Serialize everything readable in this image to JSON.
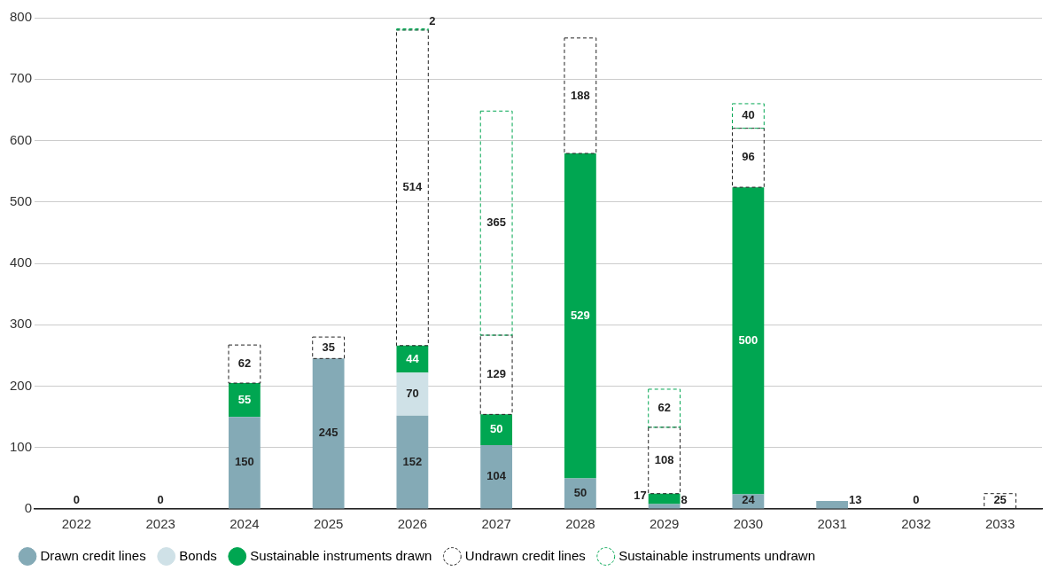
{
  "chart_data": {
    "type": "bar",
    "stacked": true,
    "categories": [
      "2022",
      "2023",
      "2024",
      "2025",
      "2026",
      "2027",
      "2028",
      "2029",
      "2030",
      "2031",
      "2032",
      "2033"
    ],
    "series": [
      {
        "name": "Drawn credit lines",
        "color": "#84aab6",
        "values": [
          0,
          0,
          150,
          245,
          152,
          104,
          50,
          8,
          24,
          13,
          0,
          0
        ],
        "value_labels": [
          "0",
          "0",
          "150",
          "245",
          "152",
          "104",
          "50",
          "8",
          "24",
          "13",
          "0",
          null
        ]
      },
      {
        "name": "Bonds",
        "color": "#cfe1e7",
        "values": [
          0,
          0,
          0,
          0,
          70,
          0,
          0,
          0,
          0,
          0,
          0,
          0
        ],
        "value_labels": [
          null,
          null,
          null,
          null,
          "70",
          null,
          null,
          null,
          null,
          null,
          null,
          null
        ]
      },
      {
        "name": "Sustainable instruments drawn",
        "color": "#00a651",
        "values": [
          0,
          0,
          55,
          0,
          44,
          50,
          529,
          17,
          500,
          0,
          0,
          0
        ],
        "value_labels": [
          null,
          null,
          "55",
          null,
          "44",
          "50",
          "529",
          "17",
          "500",
          null,
          null,
          null
        ]
      },
      {
        "name": "Undrawn credit lines",
        "color": "#222222",
        "line_style": "dashed",
        "values": [
          0,
          0,
          62,
          35,
          514,
          129,
          188,
          108,
          96,
          0,
          0,
          25
        ],
        "value_labels": [
          null,
          null,
          "62",
          "35",
          "514",
          "129",
          "188",
          "108",
          "96",
          null,
          null,
          "25"
        ]
      },
      {
        "name": "Sustainable instruments undrawn",
        "color": "#00a651",
        "line_style": "dashed",
        "values": [
          0,
          0,
          0,
          0,
          2,
          365,
          0,
          62,
          40,
          0,
          0,
          0
        ],
        "value_labels": [
          null,
          null,
          null,
          null,
          "2",
          "365",
          null,
          "62",
          "40",
          null,
          null,
          null
        ]
      }
    ],
    "ylim": [
      0,
      800
    ],
    "yticks": [
      0,
      100,
      200,
      300,
      400,
      500,
      600,
      700,
      800
    ],
    "grid": "y",
    "legend": "bottom"
  }
}
